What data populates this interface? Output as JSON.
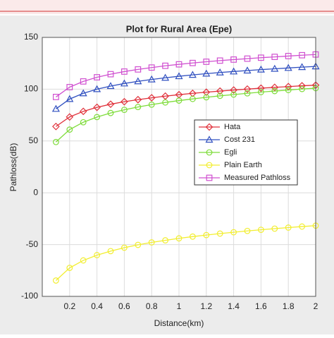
{
  "chart_data": {
    "type": "line",
    "title": "Plot for Rural Area (Epe)",
    "x_label": "Distance(km)",
    "y_label": "Pathloss(dB)",
    "x": [
      0.1,
      0.2,
      0.3,
      0.4,
      0.5,
      0.6,
      0.7,
      0.8,
      0.9,
      1,
      1.1,
      1.2,
      1.3,
      1.4,
      1.5,
      1.6,
      1.7,
      1.8,
      1.9,
      2
    ],
    "series": [
      {
        "name": "Hata",
        "color": "#e0303a",
        "marker": "diamond",
        "values": [
          64.0,
          73.2,
          78.6,
          82.5,
          85.5,
          87.9,
          89.9,
          91.7,
          93.3,
          94.7,
          96.0,
          97.1,
          98.2,
          99.2,
          100.1,
          101.0,
          101.8,
          102.5,
          103.3,
          103.9
        ]
      },
      {
        "name": "Cost 231",
        "color": "#3050c0",
        "marker": "triangle",
        "values": [
          81.0,
          90.5,
          96.0,
          100.0,
          103.0,
          105.5,
          107.6,
          109.4,
          111.0,
          112.5,
          113.8,
          115.0,
          116.1,
          117.1,
          118.0,
          118.9,
          119.7,
          120.5,
          121.3,
          122.0
        ]
      },
      {
        "name": "Egli",
        "color": "#7edc3a",
        "marker": "circle",
        "values": [
          49.0,
          61.0,
          68.1,
          73.1,
          77.0,
          80.1,
          82.8,
          85.1,
          87.2,
          89.0,
          90.6,
          92.2,
          93.6,
          94.8,
          96.0,
          97.2,
          98.2,
          99.2,
          100.2,
          101.0
        ]
      },
      {
        "name": "Plain Earth",
        "color": "#f2ee30",
        "marker": "circle",
        "values": [
          -84.7,
          -72.5,
          -65.3,
          -60.2,
          -56.3,
          -53.0,
          -50.3,
          -47.9,
          -45.9,
          -44.0,
          -42.3,
          -40.8,
          -39.4,
          -38.1,
          -36.8,
          -35.7,
          -34.6,
          -33.6,
          -32.6,
          -31.7
        ]
      },
      {
        "name": "Measured Pathloss",
        "color": "#d050d0",
        "marker": "square",
        "values": [
          92.5,
          102.0,
          107.5,
          111.5,
          114.5,
          117.0,
          119.1,
          120.9,
          122.6,
          124.0,
          125.3,
          126.5,
          127.6,
          128.6,
          129.5,
          130.4,
          131.2,
          132.0,
          132.8,
          133.5
        ]
      }
    ],
    "xlim": [
      0,
      2
    ],
    "xticks": [
      0.2,
      0.4,
      0.6,
      0.8,
      1,
      1.2,
      1.4,
      1.6,
      1.8,
      2
    ],
    "ylim": [
      -100,
      150
    ],
    "yticks": [
      -100,
      -50,
      0,
      50,
      100,
      150
    ],
    "grid": true,
    "legend": "right"
  }
}
